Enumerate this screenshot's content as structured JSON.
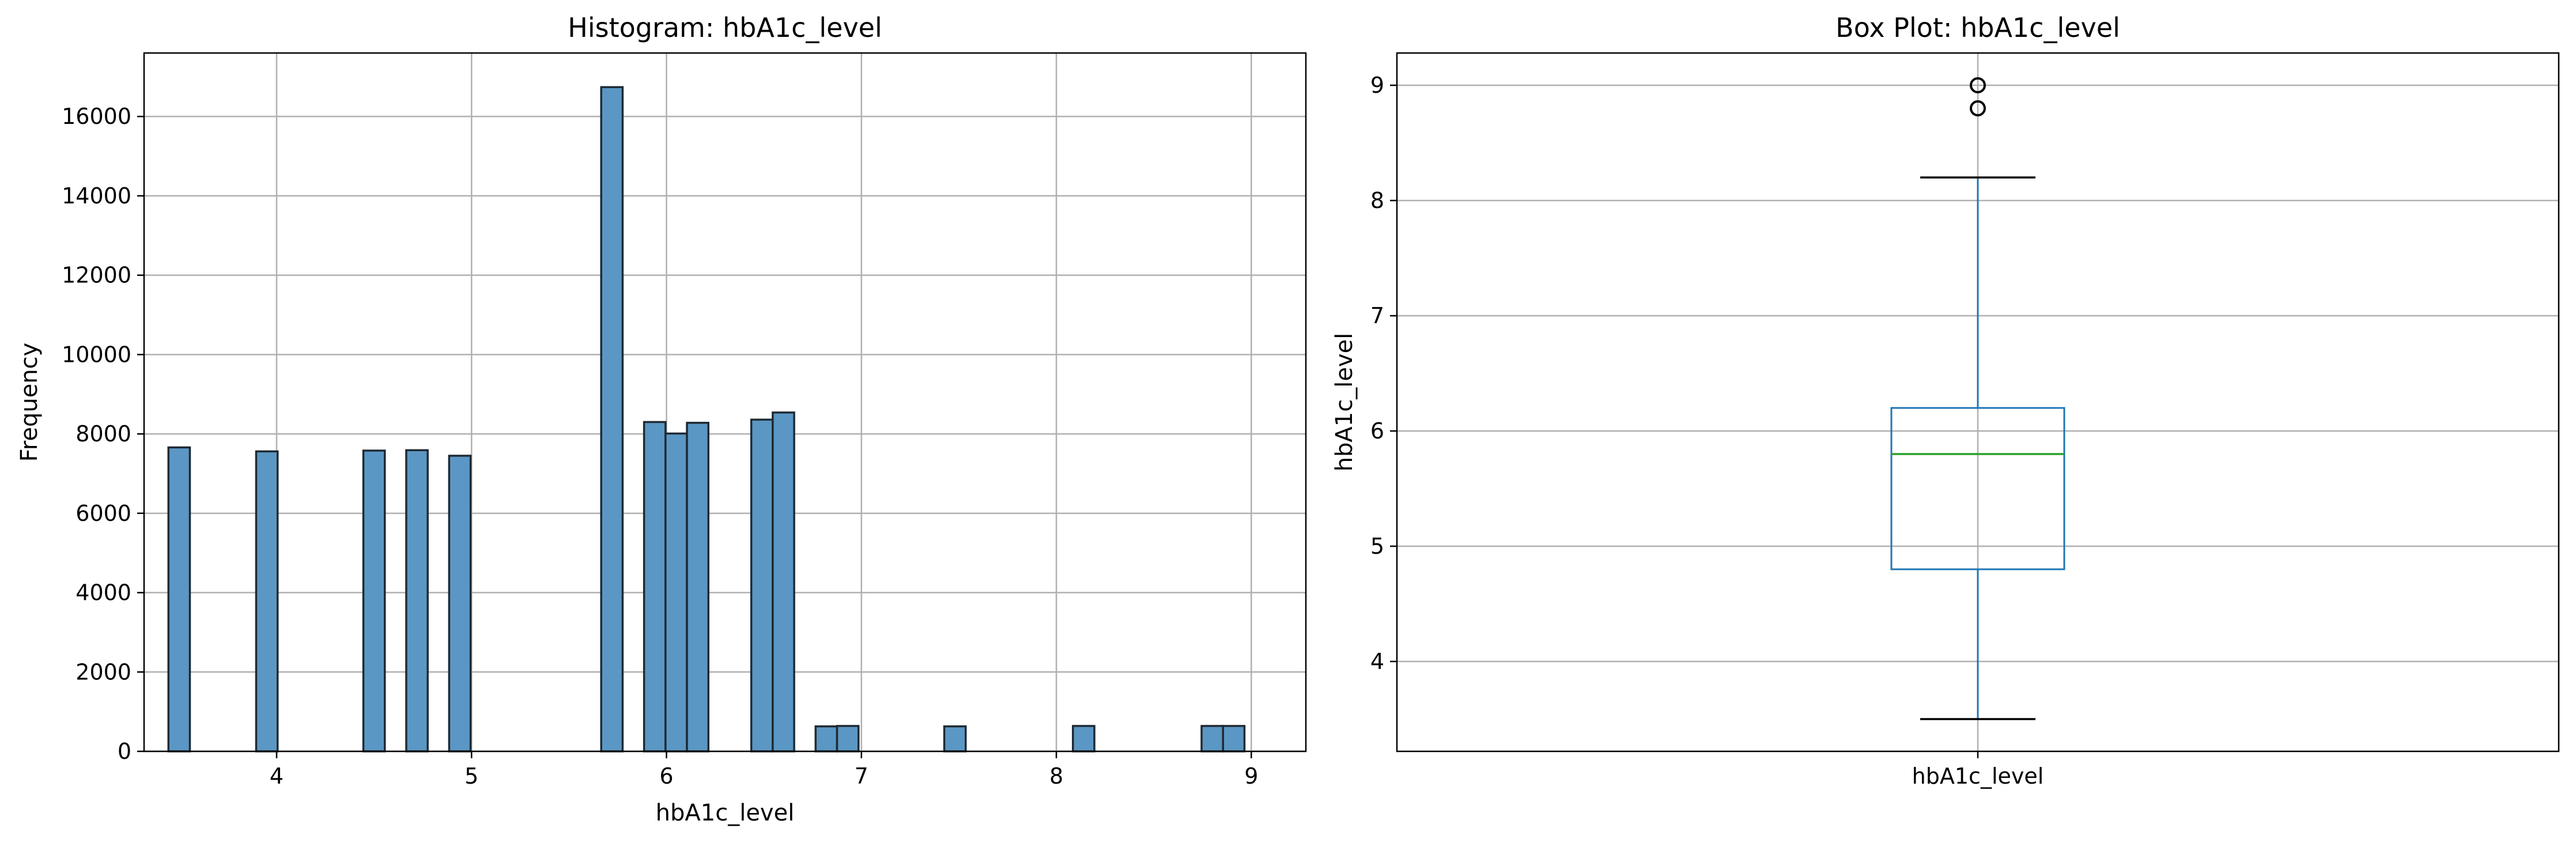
{
  "chart_data": [
    {
      "type": "bar",
      "title": "Histogram: hbA1c_level",
      "xlabel": "hbA1c_level",
      "ylabel": "Frequency",
      "xlim": [
        3.32,
        9.28
      ],
      "ylim": [
        0,
        17600
      ],
      "xticks": [
        "4",
        "5",
        "6",
        "7",
        "8",
        "9"
      ],
      "yticks": [
        "0",
        "2000",
        "4000",
        "6000",
        "8000",
        "10000",
        "12000",
        "14000",
        "16000"
      ],
      "grid": true,
      "bin_width": 0.11,
      "bar_color": "#5b97c4",
      "edge_color": "#1f2a33",
      "bins": [
        {
          "x": 3.5,
          "count": 7660
        },
        {
          "x": 3.95,
          "count": 7560
        },
        {
          "x": 4.5,
          "count": 7580
        },
        {
          "x": 4.72,
          "count": 7590
        },
        {
          "x": 4.94,
          "count": 7450
        },
        {
          "x": 5.72,
          "count": 16740
        },
        {
          "x": 5.94,
          "count": 8300
        },
        {
          "x": 6.05,
          "count": 8010
        },
        {
          "x": 6.16,
          "count": 8280
        },
        {
          "x": 6.49,
          "count": 8360
        },
        {
          "x": 6.6,
          "count": 8540
        },
        {
          "x": 6.82,
          "count": 630
        },
        {
          "x": 6.93,
          "count": 640
        },
        {
          "x": 7.48,
          "count": 630
        },
        {
          "x": 8.14,
          "count": 640
        },
        {
          "x": 8.8,
          "count": 640
        },
        {
          "x": 8.91,
          "count": 640
        }
      ]
    },
    {
      "type": "box",
      "title": "Box Plot: hbA1c_level",
      "ylabel": "hbA1c_level",
      "category": "hbA1c_level",
      "ylim": [
        3.22,
        9.28
      ],
      "yticks": [
        "4",
        "5",
        "6",
        "7",
        "8",
        "9"
      ],
      "grid": true,
      "whisker_low": 3.5,
      "q1": 4.8,
      "median": 5.8,
      "q3": 6.2,
      "whisker_high": 8.2,
      "outliers": [
        8.8,
        9.0
      ],
      "box_color": "#1f77b4",
      "median_color": "#2ca02c"
    }
  ]
}
